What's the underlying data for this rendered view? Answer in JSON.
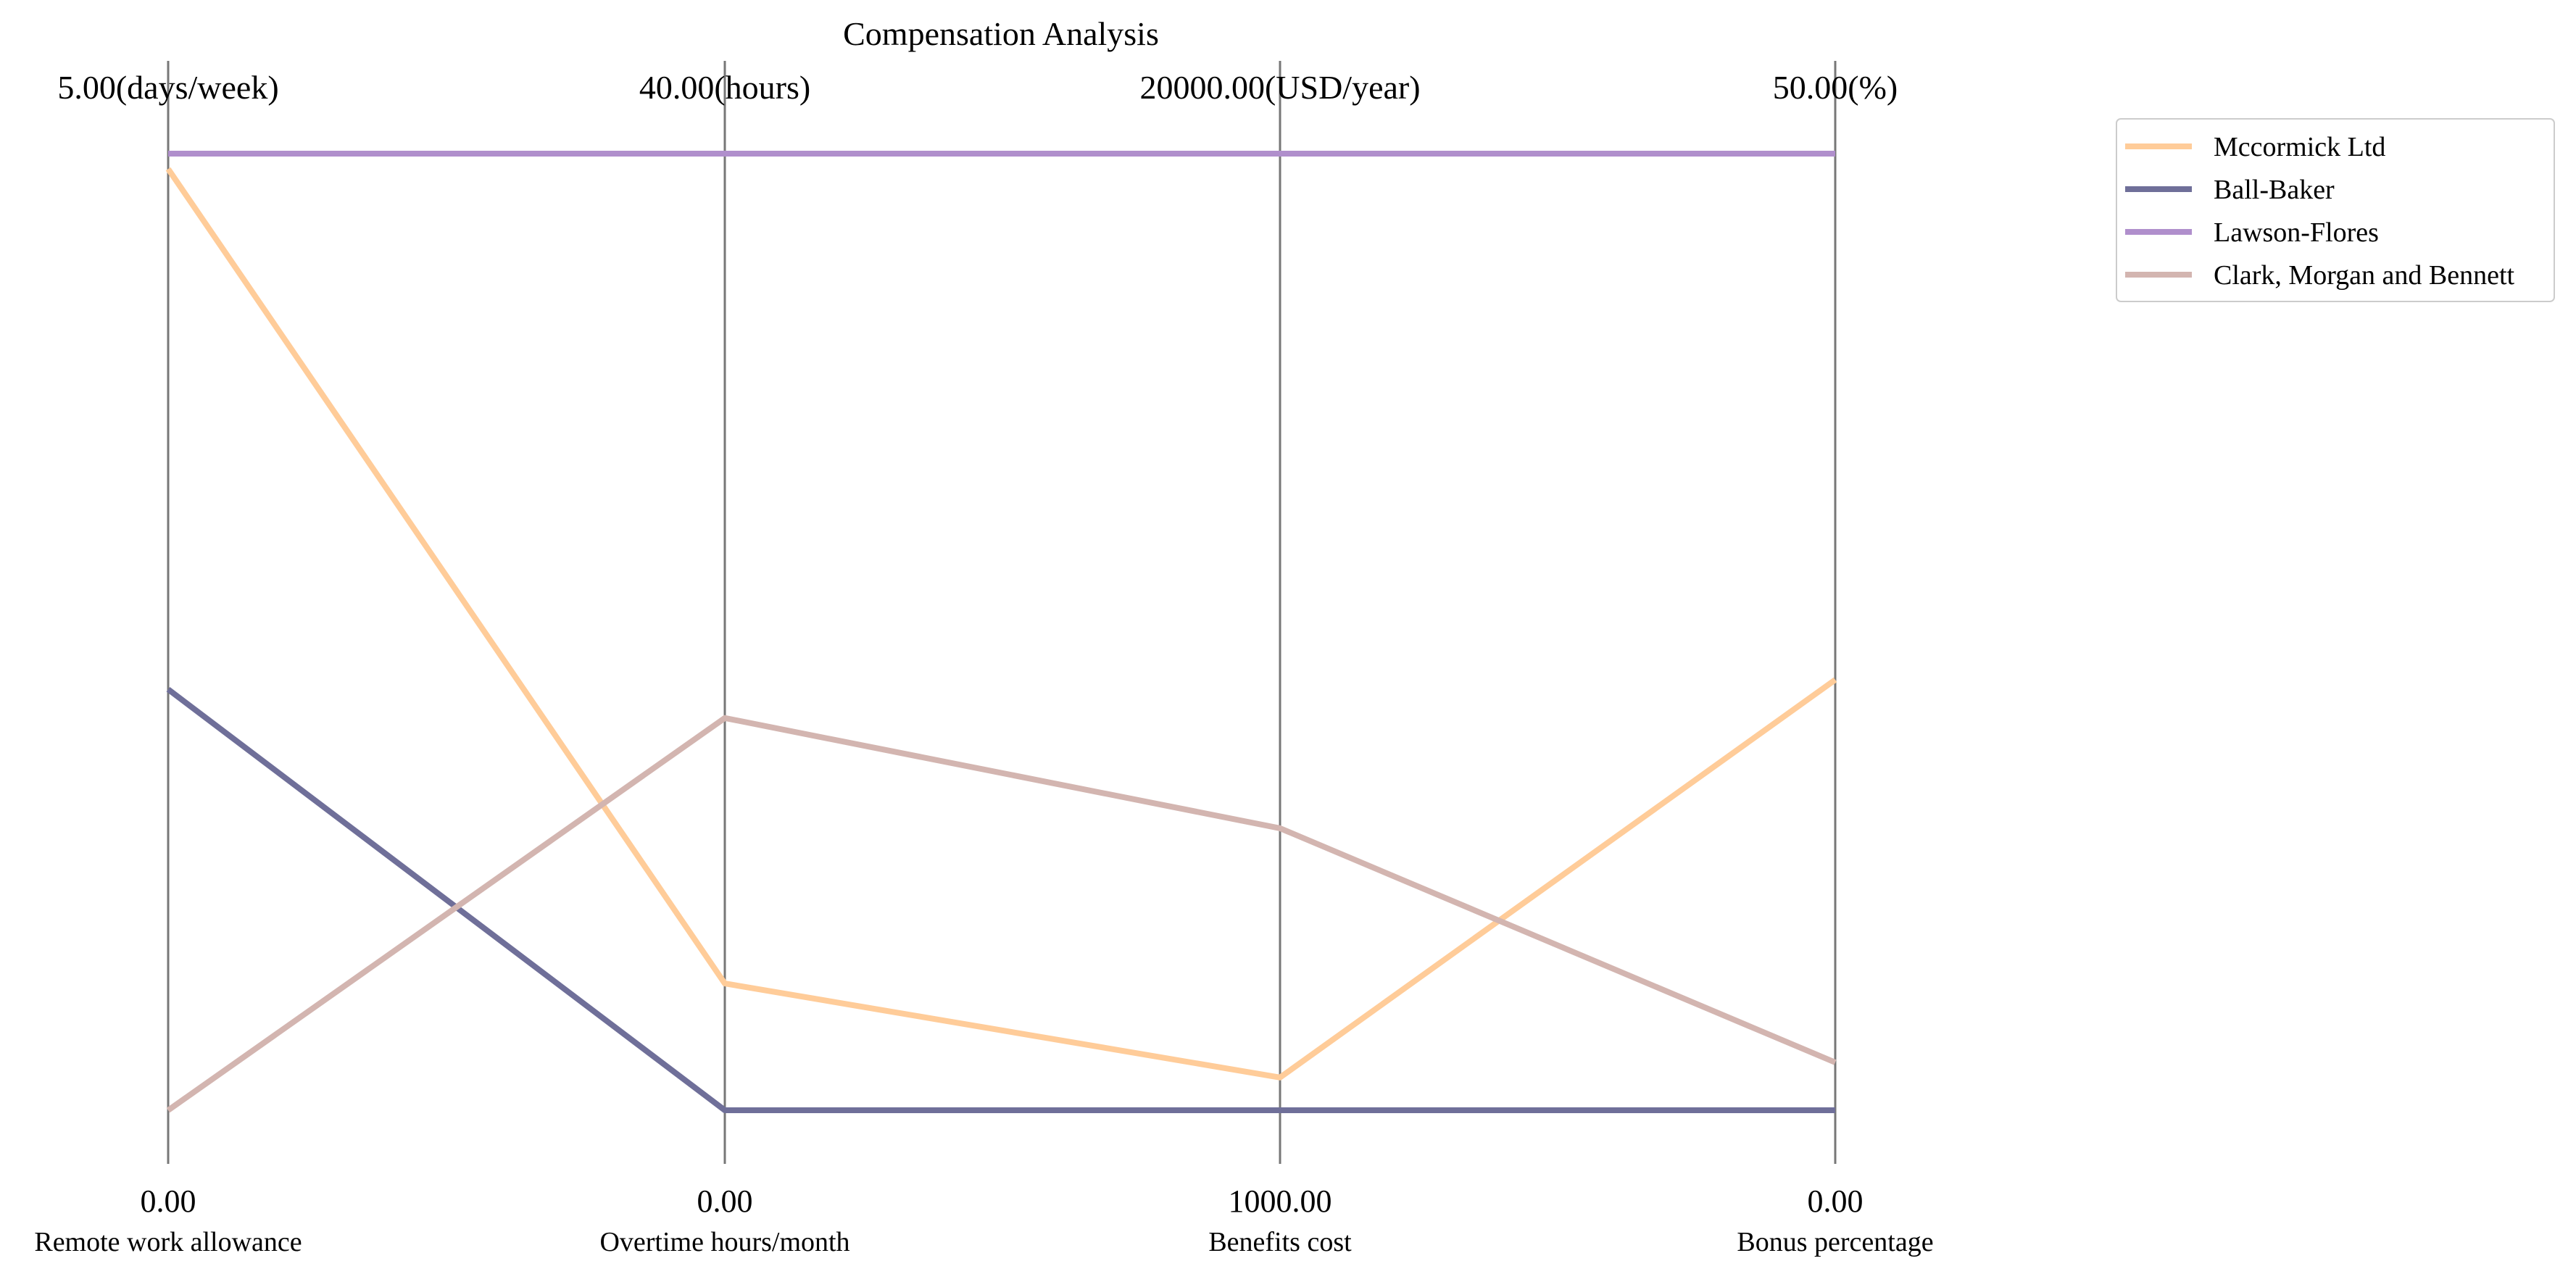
{
  "chart_data": {
    "type": "parallel_coordinates",
    "title": "Compensation Analysis",
    "axes": [
      {
        "name": "Remote work allowance",
        "min": 0,
        "max": 5,
        "min_label": "0.00",
        "max_label": "5.00(days/week)"
      },
      {
        "name": "Overtime hours/month",
        "min": 0,
        "max": 40,
        "min_label": "0.00",
        "max_label": "40.00(hours)"
      },
      {
        "name": "Benefits cost",
        "min": 1000,
        "max": 20000,
        "min_label": "1000.00",
        "max_label": "20000.00(USD/year)"
      },
      {
        "name": "Bonus percentage",
        "min": 0,
        "max": 50,
        "min_label": "0.00",
        "max_label": "50.00(%)"
      }
    ],
    "series": [
      {
        "name": "Mccormick Ltd",
        "color": "#ffcc99",
        "values": [
          4.92,
          5.3,
          1650,
          22.5
        ]
      },
      {
        "name": "Ball-Baker",
        "color": "#6f6f99",
        "values": [
          2.2,
          0,
          1000,
          0
        ]
      },
      {
        "name": "Lawson-Flores",
        "color": "#b08fcc",
        "values": [
          5,
          40,
          20000,
          50
        ]
      },
      {
        "name": "Clark, Morgan and Bennett",
        "color": "#d3b5b0",
        "values": [
          0,
          16.4,
          6600,
          2.5
        ]
      }
    ],
    "legend": "top-right",
    "grid": false
  }
}
